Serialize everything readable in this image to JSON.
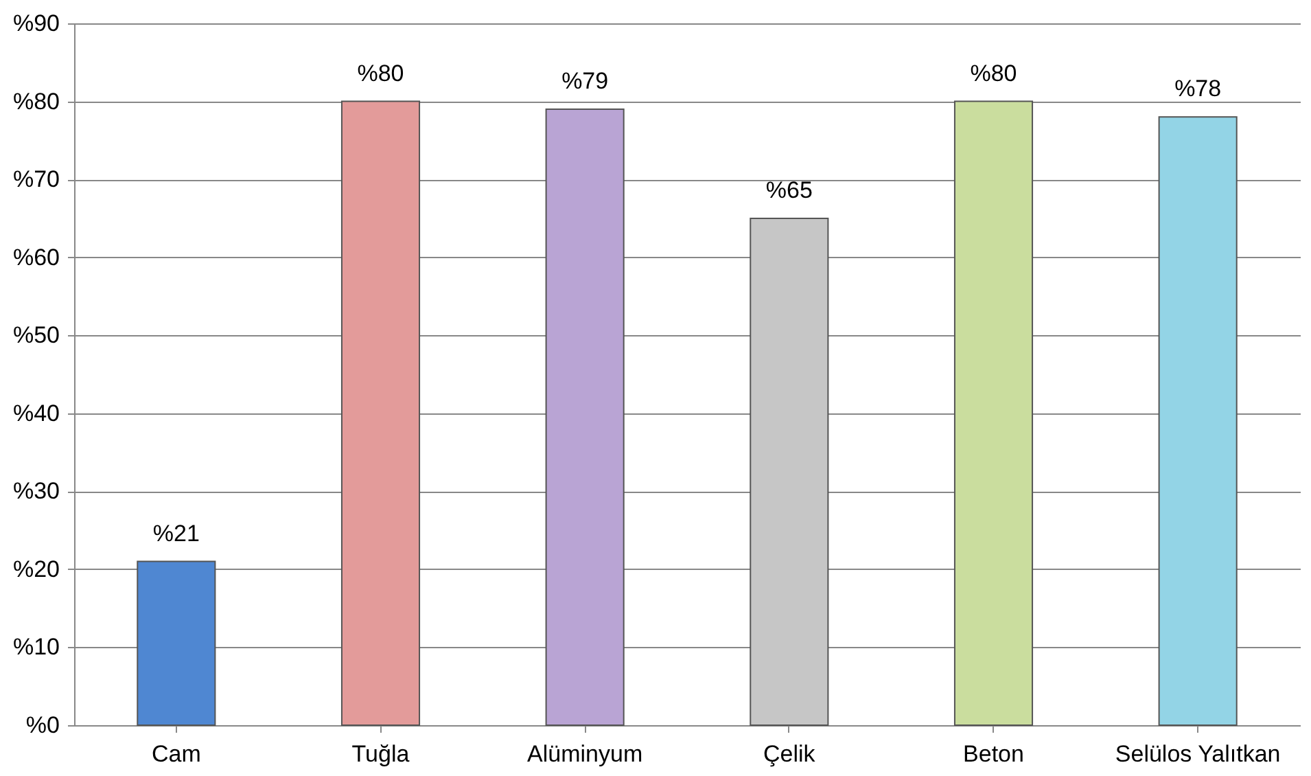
{
  "chart_data": {
    "type": "bar",
    "categories": [
      "Cam",
      "Tuğla",
      "Alüminyum",
      "Çelik",
      "Beton",
      "Selülos Yalıtkan"
    ],
    "values": [
      21,
      80,
      79,
      65,
      80,
      78
    ],
    "colors": [
      "#4f87d2",
      "#e39b9a",
      "#b9a4d4",
      "#c6c6c6",
      "#cadd9e",
      "#93d4e6"
    ],
    "value_labels": [
      "%21",
      "%80",
      "%79",
      "%65",
      "%80",
      "%78"
    ],
    "ylim": [
      0,
      90
    ],
    "yticks": [
      {
        "value": 0,
        "label": "%0"
      },
      {
        "value": 10,
        "label": "%10"
      },
      {
        "value": 20,
        "label": "%20"
      },
      {
        "value": 30,
        "label": "%30"
      },
      {
        "value": 40,
        "label": "%40"
      },
      {
        "value": 50,
        "label": "%50"
      },
      {
        "value": 60,
        "label": "%60"
      },
      {
        "value": 70,
        "label": "%70"
      },
      {
        "value": 80,
        "label": "%80"
      },
      {
        "value": 90,
        "label": "%90"
      }
    ],
    "grid": "y"
  }
}
